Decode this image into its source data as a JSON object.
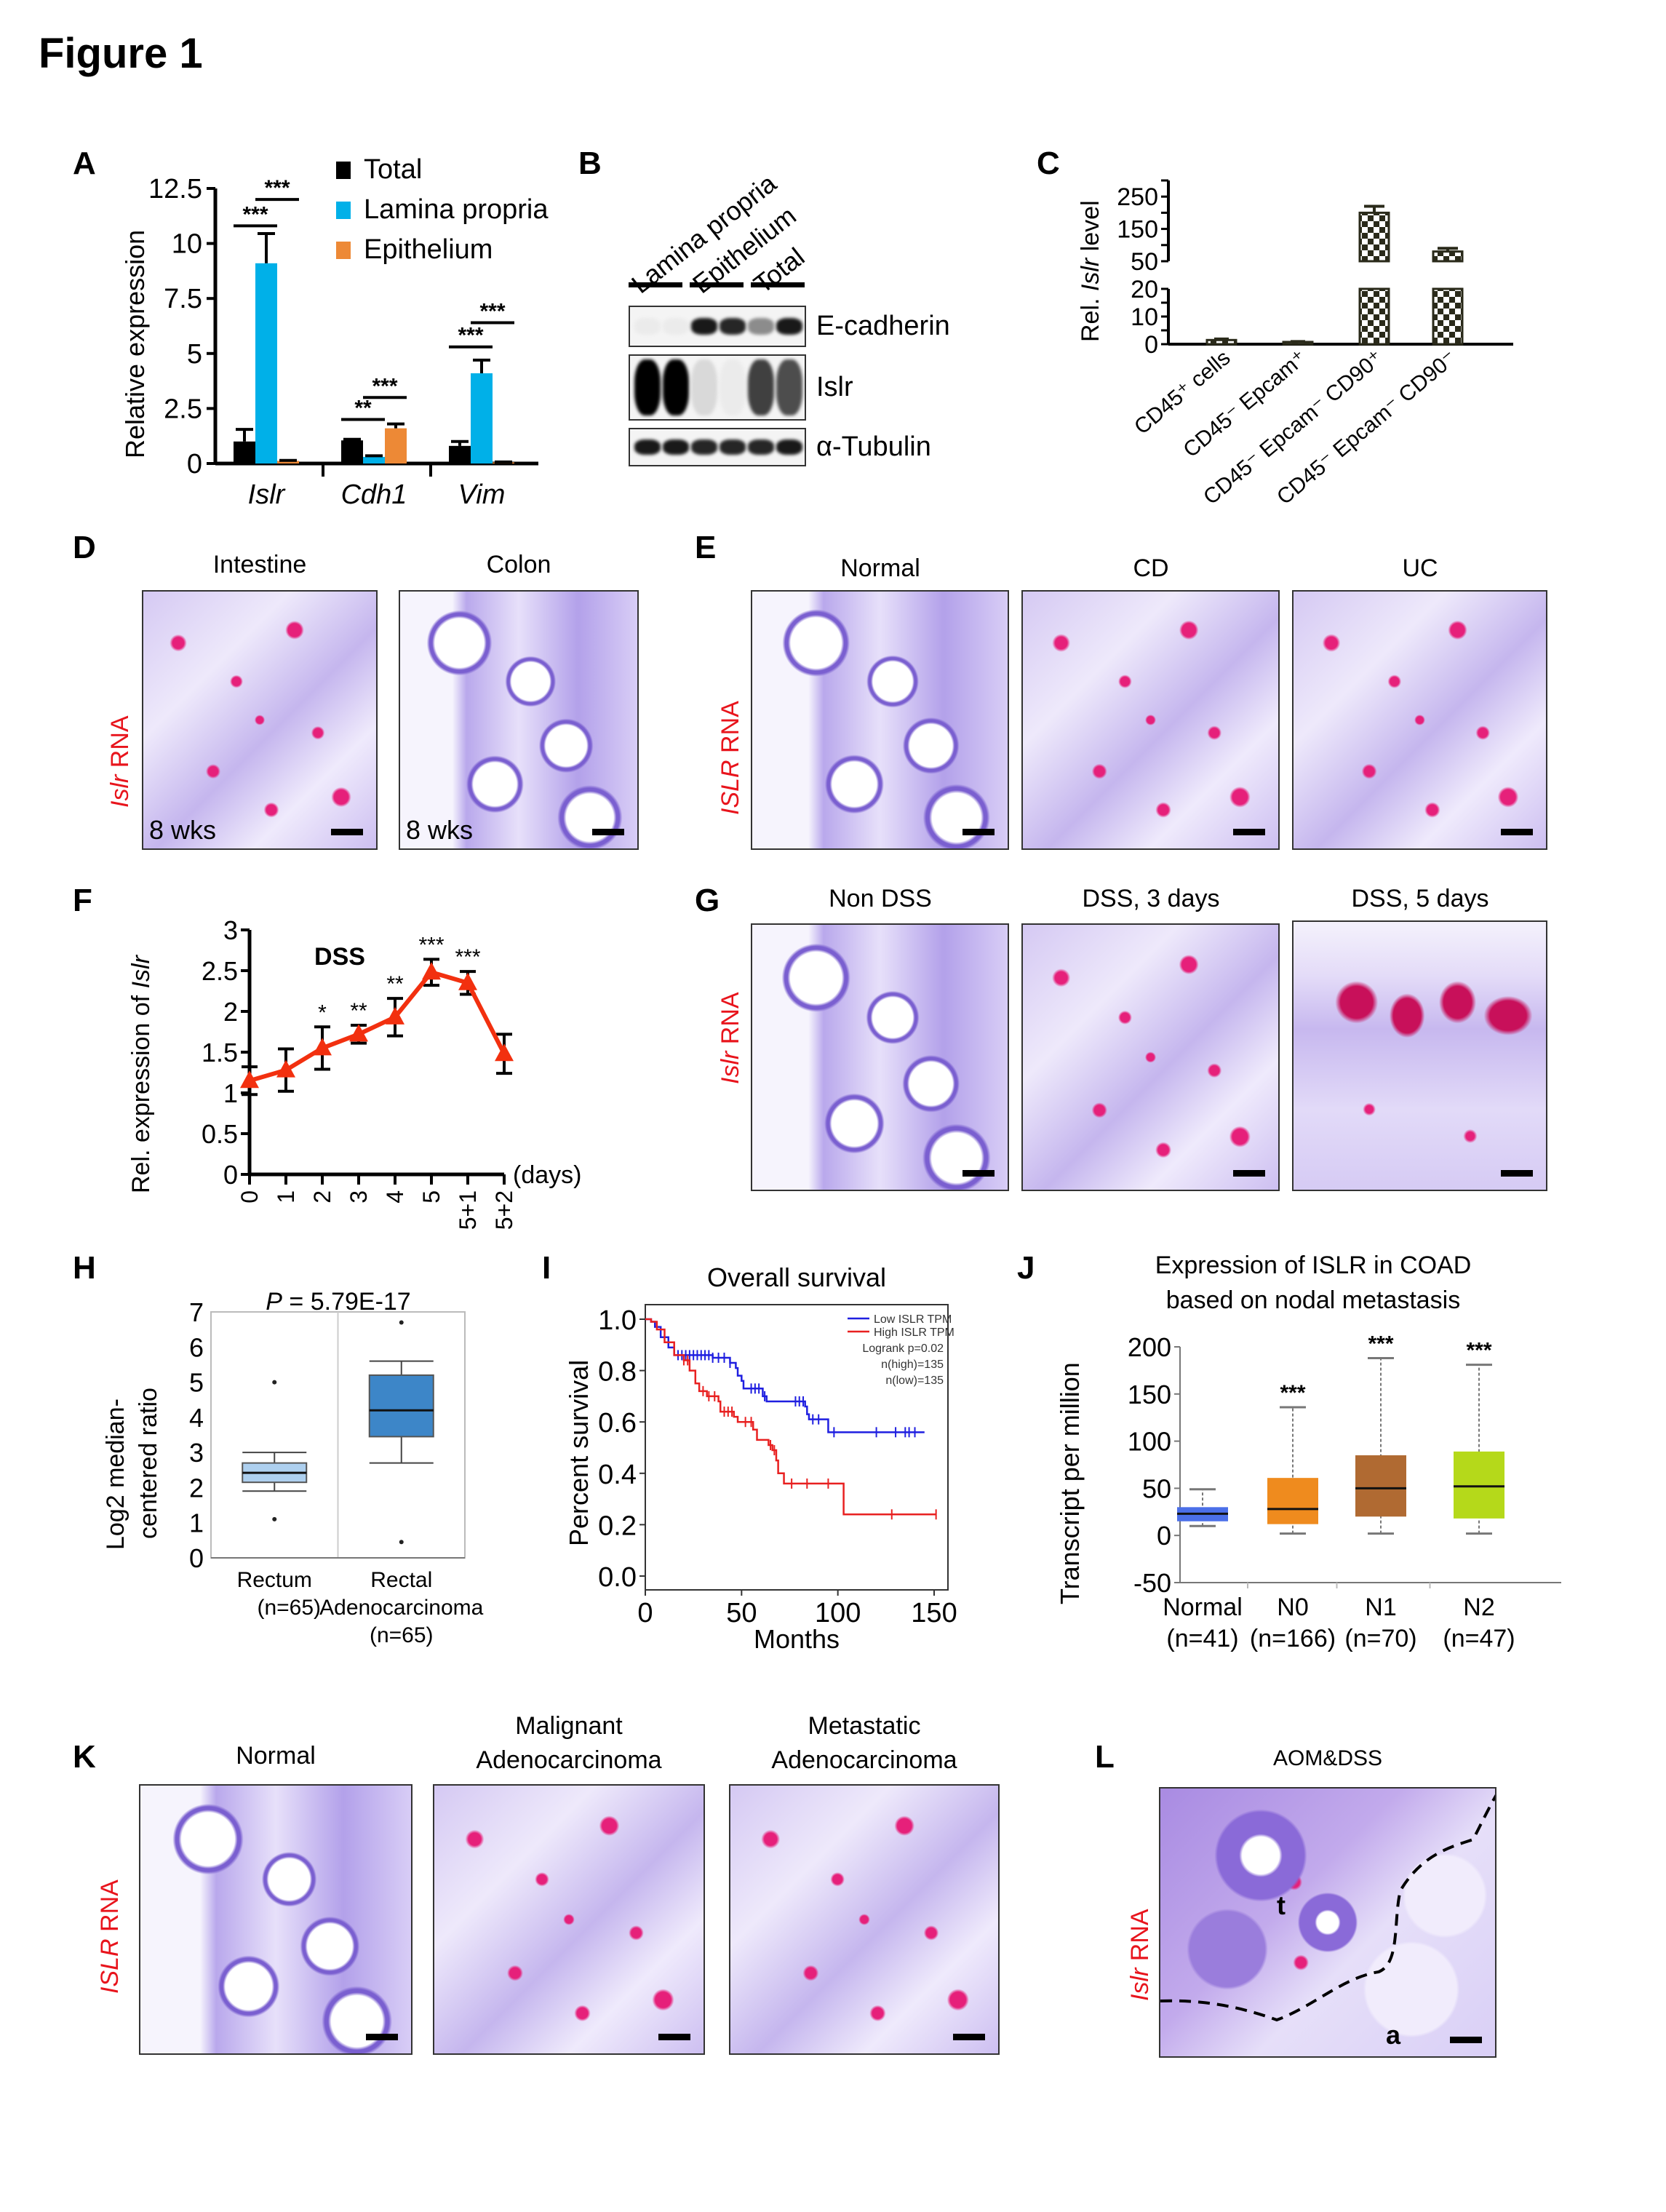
{
  "figure_title": "Figure 1",
  "panels": {
    "A": {
      "label": "A"
    },
    "B": {
      "label": "B"
    },
    "C": {
      "label": "C"
    },
    "D": {
      "label": "D",
      "row_label_italic": "Islr",
      "row_label_rest": " RNA",
      "images": [
        {
          "title": "Intestine",
          "annotation": "8 wks"
        },
        {
          "title": "Colon",
          "annotation": "8 wks"
        }
      ]
    },
    "E": {
      "label": "E",
      "row_label_italic": "ISLR",
      "row_label_rest": " RNA",
      "images": [
        {
          "title": "Normal"
        },
        {
          "title": "CD"
        },
        {
          "title": "UC"
        }
      ]
    },
    "F": {
      "label": "F"
    },
    "G": {
      "label": "G",
      "row_label_italic": "Islr",
      "row_label_rest": " RNA",
      "images": [
        {
          "title": "Non DSS"
        },
        {
          "title": "DSS, 3 days"
        },
        {
          "title": "DSS, 5 days"
        }
      ]
    },
    "H": {
      "label": "H"
    },
    "I": {
      "label": "I"
    },
    "J": {
      "label": "J"
    },
    "K": {
      "label": "K",
      "row_label_italic": "ISLR",
      "row_label_rest": " RNA",
      "images": [
        {
          "title": "Normal"
        },
        {
          "title_line1": "Malignant",
          "title_line2": "Adenocarcinoma"
        },
        {
          "title_line1": "Metastatic",
          "title_line2": "Adenocarcinoma"
        }
      ]
    },
    "L": {
      "label": "L",
      "row_label_italic": "Islr",
      "row_label_rest": " RNA",
      "images": [
        {
          "title": "AOM&DSS",
          "region_labels": [
            "t",
            "a"
          ]
        }
      ]
    }
  },
  "western_blot": {
    "lane_groups": [
      "Lamina propria",
      "Epithelium",
      "Total"
    ],
    "bands": [
      "E-cadherin",
      "Islr",
      "α-Tubulin"
    ],
    "intensity": {
      "E-cadherin": [
        0.08,
        0.08,
        0.9,
        0.85,
        0.45,
        0.9
      ],
      "Islr": [
        1.0,
        1.0,
        0.15,
        0.08,
        0.75,
        0.7
      ],
      "α-Tubulin": [
        0.9,
        0.9,
        0.85,
        0.85,
        0.85,
        0.9
      ]
    }
  },
  "chart_data": [
    {
      "id": "A",
      "type": "bar",
      "title": "",
      "ylabel": "Relative expression",
      "xlabel": "",
      "categories": [
        "Islr",
        "Cdh1",
        "Vim"
      ],
      "category_style": "italic",
      "ylim": [
        0,
        12.5
      ],
      "yticks": [
        0,
        2.5,
        5,
        7.5,
        10,
        12.5
      ],
      "ytick_labels": [
        "0",
        "2.5",
        "5",
        "7.5",
        "10",
        "12.5"
      ],
      "legend_position": "top-right",
      "series": [
        {
          "name": "Total",
          "color": "#000000",
          "values": [
            1.0,
            1.05,
            0.8
          ],
          "errors": [
            0.55,
            0.05,
            0.2
          ]
        },
        {
          "name": "Lamina propria",
          "color": "#00b0e8",
          "values": [
            9.1,
            0.3,
            4.1
          ],
          "errors": [
            1.35,
            0.05,
            0.6
          ]
        },
        {
          "name": "Epithelium",
          "color": "#ed8936",
          "values": [
            0.12,
            1.6,
            0.05
          ],
          "errors": [
            0.02,
            0.2,
            0.02
          ]
        }
      ],
      "significance": [
        {
          "category": "Islr",
          "pair": [
            "Total",
            "Lamina propria"
          ],
          "label": "***",
          "y": 10.8
        },
        {
          "category": "Islr",
          "pair": [
            "Lamina propria",
            "Epithelium"
          ],
          "label": "***",
          "y": 12.0
        },
        {
          "category": "Cdh1",
          "pair": [
            "Total",
            "Lamina propria"
          ],
          "label": "**",
          "y": 2.0
        },
        {
          "category": "Cdh1",
          "pair": [
            "Lamina propria",
            "Epithelium"
          ],
          "label": "***",
          "y": 3.0
        },
        {
          "category": "Vim",
          "pair": [
            "Total",
            "Lamina propria"
          ],
          "label": "***",
          "y": 5.3
        },
        {
          "category": "Vim",
          "pair": [
            "Lamina propria",
            "Epithelium"
          ],
          "label": "***",
          "y": 6.4
        }
      ]
    },
    {
      "id": "C",
      "type": "bar",
      "title": "",
      "ylabel_prefix": "Rel. ",
      "ylabel_italic": "Islr",
      "ylabel_suffix": " level",
      "categories": [
        "CD45⁺ cells",
        "CD45⁻ Epcam⁺",
        "CD45⁻ Epcam⁻ CD90⁺",
        "CD45⁻ Epcam⁻ CD90⁻"
      ],
      "broken_axis": {
        "lower": [
          0,
          20
        ],
        "upper": [
          50,
          300
        ]
      },
      "yticks_lower": [
        0,
        10,
        20
      ],
      "yticks_upper": [
        50,
        150,
        250
      ],
      "pattern": "checkerboard",
      "color": "#2a2a1a",
      "values": [
        1.5,
        0.8,
        200,
        80
      ],
      "errors": [
        0.5,
        0.3,
        20,
        10
      ]
    },
    {
      "id": "F",
      "type": "line",
      "title": "DSS",
      "ylabel_prefix": "Rel. expression of ",
      "ylabel_italic": "Islr",
      "xlabel": "(days)",
      "x": [
        "0",
        "1",
        "2",
        "3",
        "4",
        "5",
        "5+1",
        "5+2"
      ],
      "ylim": [
        0,
        3
      ],
      "yticks": [
        0,
        0.5,
        1,
        1.5,
        2,
        2.5,
        3
      ],
      "ytick_labels": [
        "0",
        "0.5",
        "1",
        "1.5",
        "2",
        "2.5",
        "3"
      ],
      "series": [
        {
          "name": "DSS",
          "color": "#f2300f",
          "marker": "triangle",
          "values": [
            1.15,
            1.28,
            1.55,
            1.72,
            1.93,
            2.48,
            2.35,
            1.48
          ],
          "errors": [
            0.17,
            0.26,
            0.26,
            0.11,
            0.23,
            0.16,
            0.14,
            0.24
          ]
        }
      ],
      "significance": [
        "",
        "",
        "*",
        "**",
        "**",
        "***",
        "***",
        ""
      ]
    },
    {
      "id": "H",
      "type": "box",
      "title_italic": "P",
      "title_rest": " = 5.79E-17",
      "ylabel_line1": "Log2 median-",
      "ylabel_line2": "centered ratio",
      "ylim": [
        0,
        7
      ],
      "yticks": [
        0,
        1,
        2,
        3,
        4,
        5,
        6,
        7
      ],
      "ytick_labels": [
        "0",
        "1",
        "2",
        "3",
        "4",
        "5",
        "6",
        "7"
      ],
      "groups": [
        {
          "name_line1": "Rectum",
          "name_line2": "(n=65)",
          "color": "#aed0ef",
          "min": 1.9,
          "q1": 2.15,
          "median": 2.42,
          "q3": 2.7,
          "max": 3.0,
          "outliers": [
            5.0,
            1.1
          ]
        },
        {
          "name_line1": "Rectal",
          "name_line2": "Adenocarcinoma",
          "name_line3": "(n=65)",
          "color": "#3d86c8",
          "min": 2.7,
          "q1": 3.45,
          "median": 4.2,
          "q3": 5.2,
          "max": 5.6,
          "outliers": [
            6.7,
            0.45
          ]
        }
      ]
    },
    {
      "id": "I",
      "type": "line",
      "subtype": "kaplan-meier",
      "title": "Overall survival",
      "xlabel": "Months",
      "ylabel": "Percent survival",
      "xlim": [
        0,
        150
      ],
      "ylim": [
        0,
        1
      ],
      "xticks": [
        0,
        50,
        100,
        150
      ],
      "yticks": [
        0.0,
        0.2,
        0.4,
        0.6,
        0.8,
        1.0
      ],
      "ytick_labels": [
        "0.0",
        "0.2",
        "0.4",
        "0.6",
        "0.8",
        "1.0"
      ],
      "legend": [
        "Low ISLR TPM",
        "High ISLR TPM"
      ],
      "legend_position": "top-right",
      "annotations": [
        "Logrank p=0.02",
        "n(high)=135",
        "n(low)=135"
      ],
      "series": [
        {
          "name": "Low ISLR TPM",
          "color": "#1f1fe0",
          "steps": [
            [
              0,
              1.0
            ],
            [
              3,
              0.99
            ],
            [
              5,
              0.97
            ],
            [
              8,
              0.93
            ],
            [
              12,
              0.89
            ],
            [
              15,
              0.86
            ],
            [
              35,
              0.85
            ],
            [
              44,
              0.83
            ],
            [
              47,
              0.81
            ],
            [
              48,
              0.78
            ],
            [
              50,
              0.76
            ],
            [
              51,
              0.73
            ],
            [
              61,
              0.7
            ],
            [
              63,
              0.68
            ],
            [
              83,
              0.66
            ],
            [
              84,
              0.63
            ],
            [
              85,
              0.61
            ],
            [
              95,
              0.56
            ],
            [
              145,
              0.56
            ]
          ],
          "censor": [
            17,
            19,
            21,
            23,
            25,
            27,
            29,
            31,
            33,
            35,
            38,
            41,
            44,
            55,
            57,
            59,
            62,
            78,
            80,
            82,
            87,
            90,
            98,
            120,
            130,
            135,
            137,
            140
          ]
        },
        {
          "name": "High ISLR TPM",
          "color": "#e82020",
          "steps": [
            [
              0,
              1.0
            ],
            [
              3,
              0.99
            ],
            [
              6,
              0.96
            ],
            [
              10,
              0.91
            ],
            [
              15,
              0.86
            ],
            [
              20,
              0.84
            ],
            [
              23,
              0.8
            ],
            [
              26,
              0.75
            ],
            [
              28,
              0.72
            ],
            [
              32,
              0.7
            ],
            [
              38,
              0.68
            ],
            [
              39,
              0.64
            ],
            [
              46,
              0.62
            ],
            [
              48,
              0.6
            ],
            [
              56,
              0.57
            ],
            [
              58,
              0.53
            ],
            [
              64,
              0.51
            ],
            [
              66,
              0.49
            ],
            [
              68,
              0.45
            ],
            [
              69,
              0.4
            ],
            [
              72,
              0.36
            ],
            [
              103,
              0.36
            ],
            [
              103,
              0.24
            ],
            [
              151,
              0.24
            ]
          ],
          "censor": [
            20,
            22,
            30,
            33,
            36,
            41,
            43,
            45,
            52,
            55,
            65,
            67,
            76,
            84,
            95,
            128,
            151
          ]
        }
      ]
    },
    {
      "id": "J",
      "type": "box",
      "title_line1": "Expression of ISLR in COAD",
      "title_line2": "based on nodal metastasis",
      "ylabel": "Transcript per million",
      "ylim": [
        -50,
        200
      ],
      "yticks": [
        -50,
        0,
        50,
        100,
        150,
        200
      ],
      "ytick_labels": [
        "-50",
        "0",
        "50",
        "100",
        "150",
        "200"
      ],
      "groups": [
        {
          "name": "Normal",
          "n": "(n=41)",
          "color": "#4b6fe8",
          "min": 10,
          "q1": 15,
          "median": 23,
          "q3": 30,
          "max": 49,
          "sig": ""
        },
        {
          "name": "N0",
          "n": "(n=166)",
          "color": "#ef8b1e",
          "min": 2,
          "q1": 12,
          "median": 28,
          "q3": 61,
          "max": 136,
          "sig": "***"
        },
        {
          "name": "N1",
          "n": "(n=70)",
          "color": "#b06a32",
          "min": 2,
          "q1": 20,
          "median": 50,
          "q3": 85,
          "max": 188,
          "sig": "***"
        },
        {
          "name": "N2",
          "n": "(n=47)",
          "color": "#b5d91a",
          "min": 2,
          "q1": 18,
          "median": 52,
          "q3": 89,
          "max": 181,
          "sig": "***"
        }
      ]
    }
  ]
}
